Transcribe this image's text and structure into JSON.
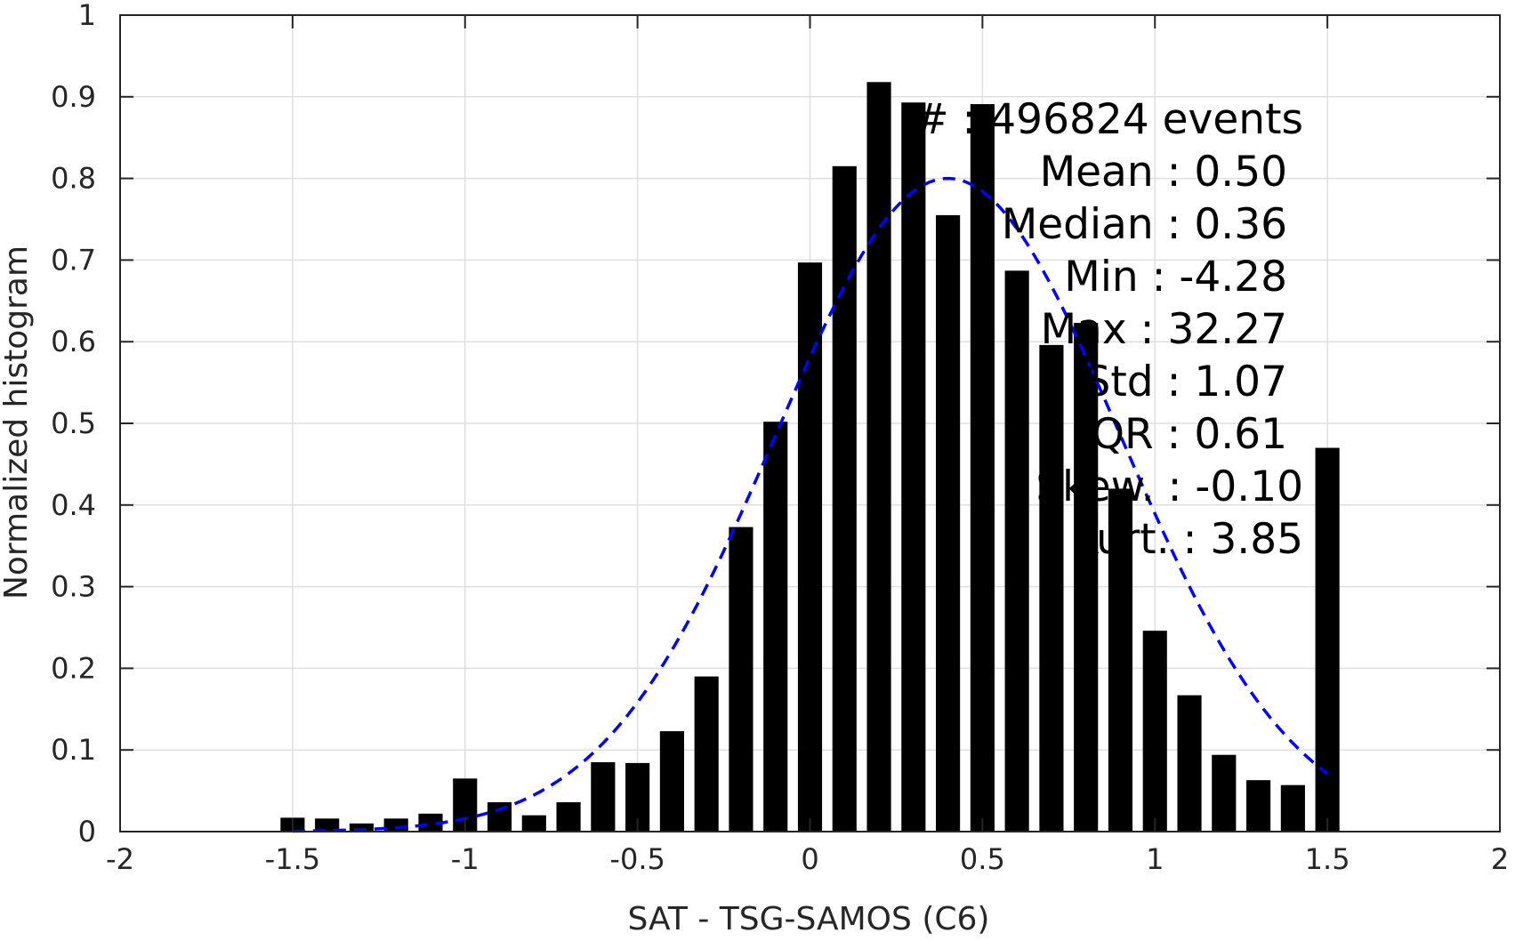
{
  "colors": {
    "bar": "#000000",
    "fit": "#0000ff",
    "axis": "#262626",
    "grid": "#dfdfdf"
  },
  "chart_data": {
    "type": "bar",
    "xlabel": "SAT - TSG-SAMOS (C6)",
    "ylabel": "Normalized histogram",
    "xlim": [
      -2,
      2
    ],
    "ylim": [
      0,
      1
    ],
    "xticks": [
      -2,
      -1.5,
      -1,
      -0.5,
      0,
      0.5,
      1,
      1.5,
      2
    ],
    "xtick_labels": [
      "-2",
      "-1.5",
      "-1",
      "-0.5",
      "0",
      "0.5",
      "1",
      "1.5",
      "2"
    ],
    "yticks": [
      0,
      0.1,
      0.2,
      0.3,
      0.4,
      0.5,
      0.6,
      0.7,
      0.8,
      0.9,
      1
    ],
    "ytick_labels": [
      "0",
      "0.1",
      "0.2",
      "0.3",
      "0.4",
      "0.5",
      "0.6",
      "0.7",
      "0.8",
      "0.9",
      "1"
    ],
    "grid": true,
    "bar_width": 0.07,
    "x": [
      -1.5,
      -1.4,
      -1.3,
      -1.2,
      -1.1,
      -1.0,
      -0.9,
      -0.8,
      -0.7,
      -0.6,
      -0.5,
      -0.4,
      -0.3,
      -0.2,
      -0.1,
      0.0,
      0.1,
      0.2,
      0.3,
      0.4,
      0.5,
      0.6,
      0.7,
      0.8,
      0.9,
      1.0,
      1.1,
      1.2,
      1.3,
      1.4,
      1.5
    ],
    "values": [
      0.017,
      0.016,
      0.01,
      0.016,
      0.022,
      0.065,
      0.036,
      0.02,
      0.036,
      0.085,
      0.084,
      0.123,
      0.19,
      0.373,
      0.502,
      0.697,
      0.815,
      0.918,
      0.893,
      0.755,
      0.891,
      0.687,
      0.596,
      0.623,
      0.42,
      0.246,
      0.167,
      0.094,
      0.063,
      0.057,
      0.47
    ],
    "fit": {
      "style": "dashed",
      "mean": 0.4,
      "peak": 0.8,
      "sigma": 0.5,
      "x_range": [
        -1.5,
        1.5
      ]
    },
    "annotations": [
      "# : 496824 events",
      "Mean : 0.50",
      "Median : 0.36",
      "Min : -4.28",
      "Max : 32.27",
      "Std : 1.07",
      "IQR : 0.61",
      "Skew. : -0.10",
      "Kurt. : 3.85"
    ]
  }
}
